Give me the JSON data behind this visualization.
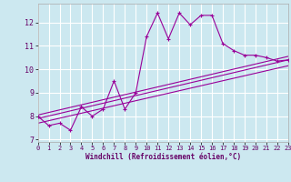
{
  "xlabel": "Windchill (Refroidissement éolien,°C)",
  "background_color": "#cce8f0",
  "grid_color": "#ffffff",
  "line_color": "#990099",
  "xlim": [
    0,
    23
  ],
  "ylim": [
    6.9,
    12.8
  ],
  "xticks": [
    0,
    1,
    2,
    3,
    4,
    5,
    6,
    7,
    8,
    9,
    10,
    11,
    12,
    13,
    14,
    15,
    16,
    17,
    18,
    19,
    20,
    21,
    22,
    23
  ],
  "yticks": [
    7,
    8,
    9,
    10,
    11,
    12
  ],
  "series1_x": [
    0,
    1,
    2,
    3,
    4,
    5,
    6,
    7,
    8,
    9,
    10,
    11,
    12,
    13,
    14,
    15,
    16,
    17,
    18,
    19,
    20,
    21,
    22,
    23
  ],
  "series1_y": [
    8.0,
    7.6,
    7.7,
    7.4,
    8.4,
    8.0,
    8.3,
    9.5,
    8.3,
    9.0,
    11.4,
    12.4,
    11.3,
    12.4,
    11.9,
    12.3,
    12.3,
    11.1,
    10.8,
    10.6,
    10.6,
    10.5,
    10.35,
    10.4
  ],
  "series2_x": [
    0,
    23
  ],
  "series2_y": [
    7.9,
    10.4
  ],
  "series3_x": [
    0,
    23
  ],
  "series3_y": [
    8.05,
    10.55
  ],
  "series4_x": [
    0,
    23
  ],
  "series4_y": [
    7.7,
    10.15
  ]
}
